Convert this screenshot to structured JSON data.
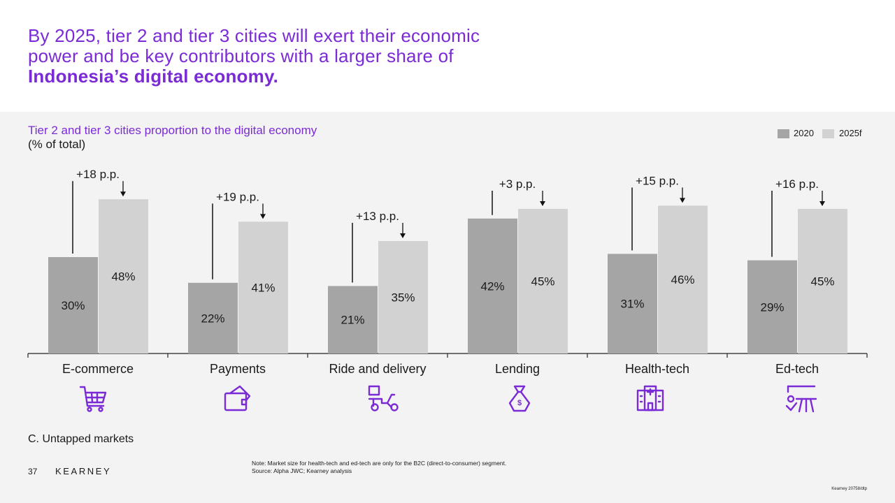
{
  "header": {
    "title_line1": "By 2025, tier 2 and tier 3 cities will exert their economic",
    "title_line2": "power and be key contributors with a larger share of",
    "title_bold": "Indonesia’s digital economy."
  },
  "chart_data": {
    "type": "bar",
    "title": "Tier 2 and tier 3 cities proportion to the digital economy",
    "unit": "(% of total)",
    "categories": [
      "E-commerce",
      "Payments",
      "Ride and delivery",
      "Lending",
      "Health-tech",
      "Ed-tech"
    ],
    "series": [
      {
        "name": "2020",
        "values": [
          30,
          22,
          21,
          42,
          31,
          29
        ],
        "labels": [
          "30%",
          "22%",
          "21%",
          "42%",
          "31%",
          "29%"
        ],
        "color": "#a5a5a5"
      },
      {
        "name": "2025f",
        "values": [
          48,
          41,
          35,
          45,
          46,
          45
        ],
        "labels": [
          "48%",
          "41%",
          "35%",
          "45%",
          "46%",
          "45%"
        ],
        "color": "#d2d2d2"
      }
    ],
    "annotations": [
      "+18 p.p.",
      "+19 p.p.",
      "+13 p.p.",
      "+3 p.p.",
      "+15 p.p.",
      "+16 p.p."
    ],
    "ylim": [
      0,
      55
    ],
    "grid": false,
    "legend": "top-right"
  },
  "icons": [
    "shopping-cart-icon",
    "wallet-icon",
    "delivery-scooter-icon",
    "money-bag-icon",
    "hospital-icon",
    "teacher-board-icon"
  ],
  "accent_color": "#7b2bd6",
  "footer": {
    "section": "C. Untapped markets",
    "page": "37",
    "brand": "KEARNEY",
    "note": "Note: Market size for health-tech and ed-tech are only for the B2C (direct-to-consumer) segment.",
    "source": "Source: Alpha JWC; Kearney analysis",
    "code": "Kearney 20758/dtp"
  }
}
